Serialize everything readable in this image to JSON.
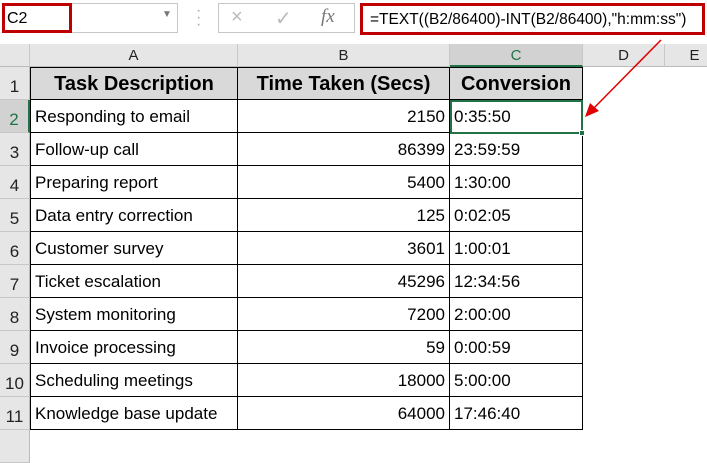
{
  "name_box": "C2",
  "formula_bar": {
    "cancel_icon": "×",
    "enter_icon": "✓",
    "fx_label": "fx",
    "formula": "=TEXT((B2/86400)-INT(B2/86400),\"h:mm:ss\")"
  },
  "columns": [
    "A",
    "B",
    "C",
    "D",
    "E"
  ],
  "selected_cell": "C2",
  "accent_color": "#217346",
  "highlight_color": "#c00000",
  "headers": [
    "Task Description",
    "Time Taken (Secs)",
    "Conversion"
  ],
  "rows": [
    {
      "n": "2",
      "task": "Responding to email",
      "secs": "2150",
      "conv": "0:35:50"
    },
    {
      "n": "3",
      "task": "Follow-up call",
      "secs": "86399",
      "conv": "23:59:59"
    },
    {
      "n": "4",
      "task": "Preparing report",
      "secs": "5400",
      "conv": "1:30:00"
    },
    {
      "n": "5",
      "task": "Data entry correction",
      "secs": "125",
      "conv": "0:02:05"
    },
    {
      "n": "6",
      "task": "Customer survey",
      "secs": "3601",
      "conv": "1:00:01"
    },
    {
      "n": "7",
      "task": "Ticket escalation",
      "secs": "45296",
      "conv": "12:34:56"
    },
    {
      "n": "8",
      "task": "System monitoring",
      "secs": "7200",
      "conv": "2:00:00"
    },
    {
      "n": "9",
      "task": "Invoice processing",
      "secs": "59",
      "conv": "0:00:59"
    },
    {
      "n": "10",
      "task": "Scheduling meetings",
      "secs": "18000",
      "conv": "5:00:00"
    },
    {
      "n": "11",
      "task": "Knowledge base update",
      "secs": "64000",
      "conv": "17:46:40"
    }
  ]
}
